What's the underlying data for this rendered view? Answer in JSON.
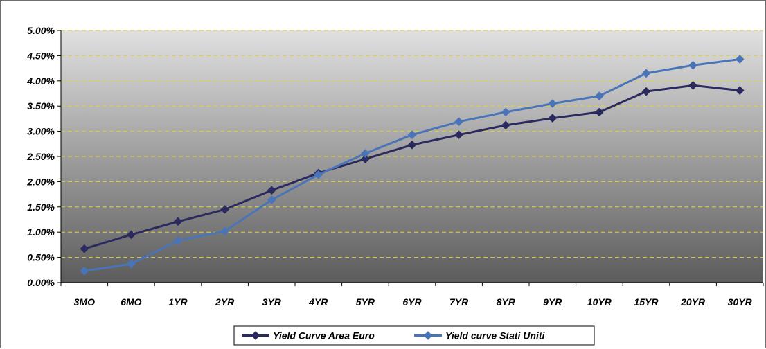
{
  "chart_data": {
    "type": "line",
    "title": "",
    "xlabel": "",
    "ylabel": "",
    "categories": [
      "3MO",
      "6MO",
      "1YR",
      "2YR",
      "3YR",
      "4YR",
      "5YR",
      "6YR",
      "7YR",
      "8YR",
      "9YR",
      "10YR",
      "15YR",
      "20YR",
      "30YR"
    ],
    "ylim": [
      0,
      5
    ],
    "yticks": [
      0,
      0.5,
      1,
      1.5,
      2,
      2.5,
      3,
      3.5,
      4,
      4.5,
      5
    ],
    "ytick_labels": [
      "0.00%",
      "0.50%",
      "1.00%",
      "1.50%",
      "2.00%",
      "2.50%",
      "3.00%",
      "3.50%",
      "4.00%",
      "4.50%",
      "5.00%"
    ],
    "grid": true,
    "legend_position": "bottom",
    "series": [
      {
        "name": "Yield Curve Area Euro",
        "color": "#2b2a5f",
        "values": [
          0.67,
          0.95,
          1.21,
          1.45,
          1.83,
          2.17,
          2.45,
          2.73,
          2.93,
          3.12,
          3.26,
          3.38,
          3.79,
          3.91,
          3.81
        ]
      },
      {
        "name": "Yield curve Stati Uniti",
        "color": "#4a74b8",
        "values": [
          0.23,
          0.37,
          0.83,
          1.02,
          1.64,
          2.14,
          2.56,
          2.93,
          3.19,
          3.38,
          3.55,
          3.7,
          4.15,
          4.31,
          4.43
        ]
      }
    ],
    "background_gradient": [
      "#e0e0e0",
      "#5c5c5c"
    ],
    "grid_color": "#e0d23a"
  }
}
